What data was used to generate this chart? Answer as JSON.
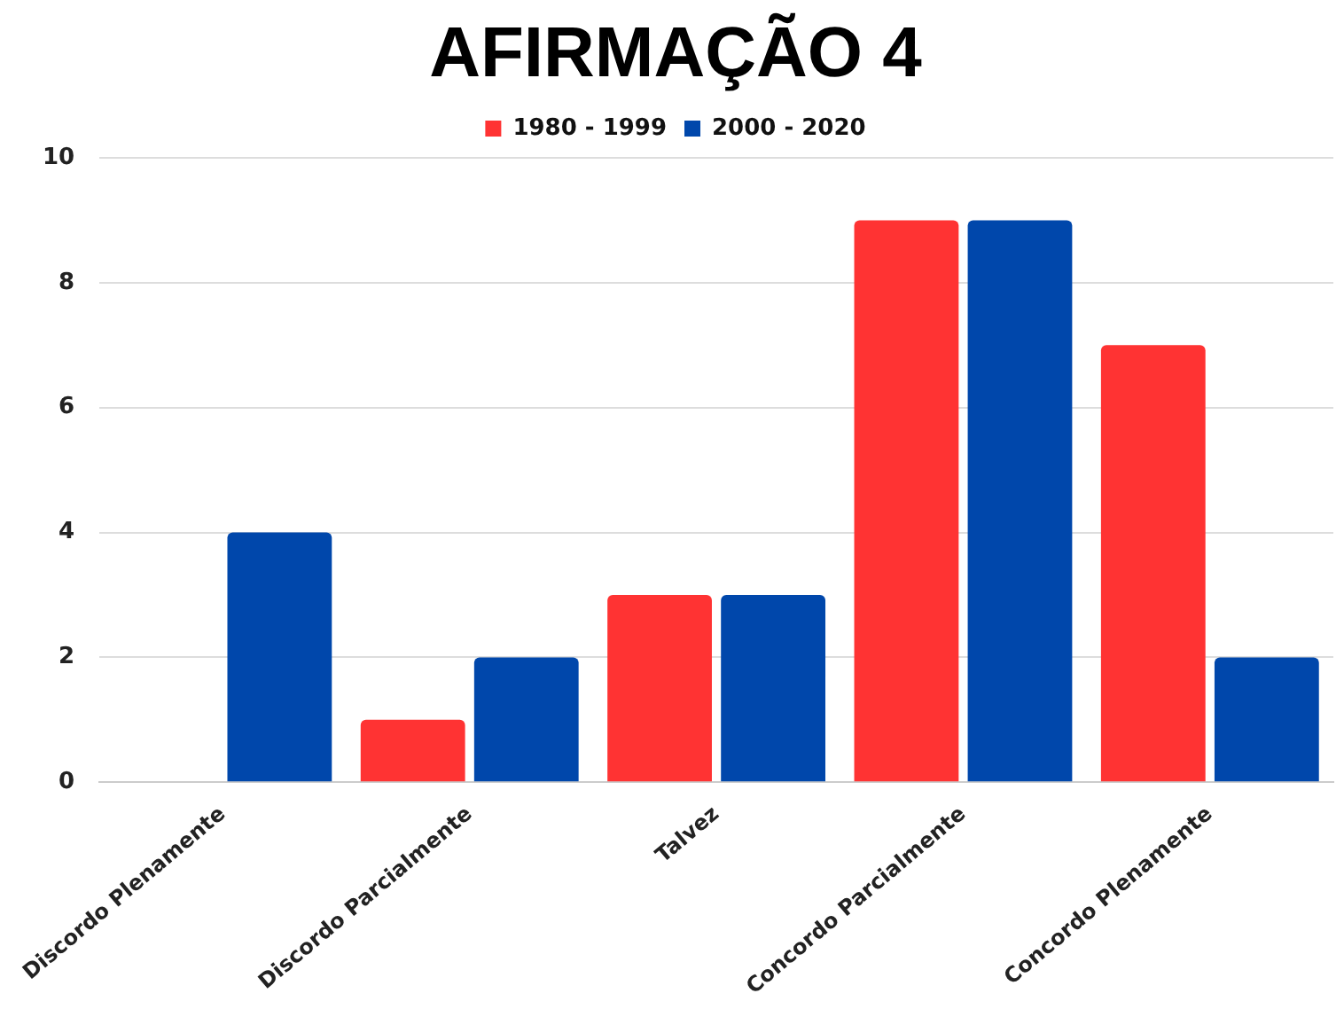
{
  "chart_data": {
    "type": "bar",
    "title": "AFIRMAÇÃO 4",
    "categories": [
      "Discordo Plenamente",
      "Discordo Parcialmente",
      "Talvez",
      "Concordo Parcialmente",
      "Concordo Plenamente"
    ],
    "series": [
      {
        "name": "1980 - 1999",
        "color": "#ff3333",
        "values": [
          0,
          1,
          3,
          9,
          7
        ]
      },
      {
        "name": "2000 - 2020",
        "color": "#0047ab",
        "values": [
          4,
          2,
          3,
          9,
          2
        ]
      }
    ],
    "ylim": [
      0,
      10
    ],
    "yticks": [
      0,
      2,
      4,
      6,
      8,
      10
    ],
    "grid": "y",
    "legend": "top"
  }
}
